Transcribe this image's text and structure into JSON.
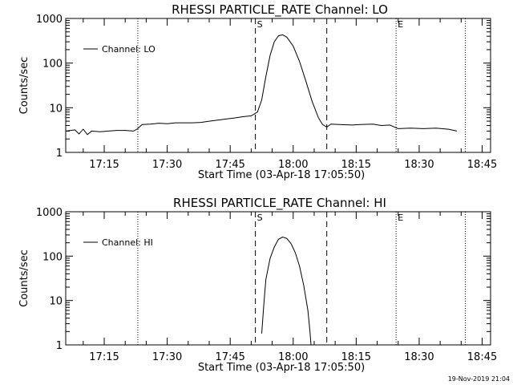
{
  "timestamp": "19-Nov-2019 21:04",
  "x_tick_labels": [
    "17:15",
    "17:30",
    "17:45",
    "18:00",
    "18:15",
    "18:30",
    "18:45"
  ],
  "chart_data": [
    {
      "type": "line",
      "title": "RHESSI PARTICLE_RATE Channel: LO",
      "xlabel": "Start Time (03-Apr-18 17:05:50)",
      "ylabel": "Counts/sec",
      "yscale": "log",
      "ylim": [
        1,
        1000
      ],
      "y_tick_labels": [
        "1",
        "10",
        "100",
        "1000"
      ],
      "xlim": [
        "17:05:50",
        "18:47:00"
      ],
      "legend": {
        "entry": "Channel: LO",
        "placement": "top-left"
      },
      "event_markers": [
        {
          "label": "S",
          "time": "17:51:00"
        },
        {
          "label": "E",
          "time": "18:24:30"
        }
      ],
      "dashed_lines": [
        "17:51:00",
        "18:08:00"
      ],
      "dotted_lines": [
        "17:23:00",
        "18:24:30",
        "18:41:00"
      ],
      "series": [
        {
          "name": "Channel: LO",
          "points": [
            [
              "17:06:00",
              3.0
            ],
            [
              "17:08:00",
              3.2
            ],
            [
              "17:09:00",
              2.6
            ],
            [
              "17:10:00",
              3.3
            ],
            [
              "17:11:00",
              2.5
            ],
            [
              "17:12:00",
              3.0
            ],
            [
              "17:14:00",
              2.9
            ],
            [
              "17:16:00",
              3.0
            ],
            [
              "17:18:00",
              3.1
            ],
            [
              "17:20:00",
              3.1
            ],
            [
              "17:22:00",
              3.0
            ],
            [
              "17:23:00",
              3.4
            ],
            [
              "17:24:00",
              4.2
            ],
            [
              "17:26:00",
              4.3
            ],
            [
              "17:28:00",
              4.5
            ],
            [
              "17:30:00",
              4.4
            ],
            [
              "17:32:00",
              4.6
            ],
            [
              "17:34:00",
              4.6
            ],
            [
              "17:36:00",
              4.6
            ],
            [
              "17:38:00",
              4.7
            ],
            [
              "17:40:00",
              5.0
            ],
            [
              "17:42:00",
              5.3
            ],
            [
              "17:44:00",
              5.6
            ],
            [
              "17:46:00",
              5.9
            ],
            [
              "17:48:00",
              6.3
            ],
            [
              "17:50:00",
              6.6
            ],
            [
              "17:51:30",
              8.0
            ],
            [
              "17:52:30",
              15.0
            ],
            [
              "17:53:30",
              50.0
            ],
            [
              "17:54:30",
              150.0
            ],
            [
              "17:55:30",
              300.0
            ],
            [
              "17:56:30",
              410.0
            ],
            [
              "17:57:30",
              430.0
            ],
            [
              "17:58:30",
              380.0
            ],
            [
              "18:00:00",
              240.0
            ],
            [
              "18:01:30",
              110.0
            ],
            [
              "18:03:00",
              40.0
            ],
            [
              "18:04:30",
              14.0
            ],
            [
              "18:06:00",
              6.0
            ],
            [
              "18:07:00",
              4.2
            ],
            [
              "18:08:00",
              3.7
            ],
            [
              "18:09:00",
              4.3
            ],
            [
              "18:11:00",
              4.2
            ],
            [
              "18:14:00",
              4.1
            ],
            [
              "18:16:00",
              4.2
            ],
            [
              "18:19:00",
              4.3
            ],
            [
              "18:21:00",
              4.0
            ],
            [
              "18:23:00",
              4.1
            ],
            [
              "18:25:00",
              3.4
            ],
            [
              "18:28:00",
              3.5
            ],
            [
              "18:31:00",
              3.4
            ],
            [
              "18:34:00",
              3.5
            ],
            [
              "18:37:00",
              3.3
            ],
            [
              "18:39:00",
              3.0
            ]
          ]
        }
      ]
    },
    {
      "type": "line",
      "title": "RHESSI PARTICLE_RATE Channel: HI",
      "xlabel": "Start Time (03-Apr-18 17:05:50)",
      "ylabel": "Counts/sec",
      "yscale": "log",
      "ylim": [
        1,
        1000
      ],
      "y_tick_labels": [
        "1",
        "10",
        "100",
        "1000"
      ],
      "xlim": [
        "17:05:50",
        "18:47:00"
      ],
      "legend": {
        "entry": "Channel: HI",
        "placement": "top-left"
      },
      "event_markers": [
        {
          "label": "S",
          "time": "17:51:00"
        },
        {
          "label": "E",
          "time": "18:24:30"
        }
      ],
      "dashed_lines": [
        "17:51:00",
        "18:08:00"
      ],
      "dotted_lines": [
        "17:23:00",
        "18:24:30",
        "18:41:00"
      ],
      "series": [
        {
          "name": "Channel: HI",
          "points": [
            [
              "17:52:30",
              1.8
            ],
            [
              "17:53:00",
              8.0
            ],
            [
              "17:53:30",
              30.0
            ],
            [
              "17:54:30",
              90.0
            ],
            [
              "17:55:30",
              160.0
            ],
            [
              "17:56:30",
              240.0
            ],
            [
              "17:57:30",
              270.0
            ],
            [
              "17:58:30",
              250.0
            ],
            [
              "17:59:30",
              190.0
            ],
            [
              "18:00:30",
              120.0
            ],
            [
              "18:01:30",
              60.0
            ],
            [
              "18:02:30",
              22.0
            ],
            [
              "18:03:30",
              6.0
            ],
            [
              "18:04:00",
              2.0
            ],
            [
              "18:04:15",
              1.0
            ]
          ]
        }
      ]
    }
  ]
}
